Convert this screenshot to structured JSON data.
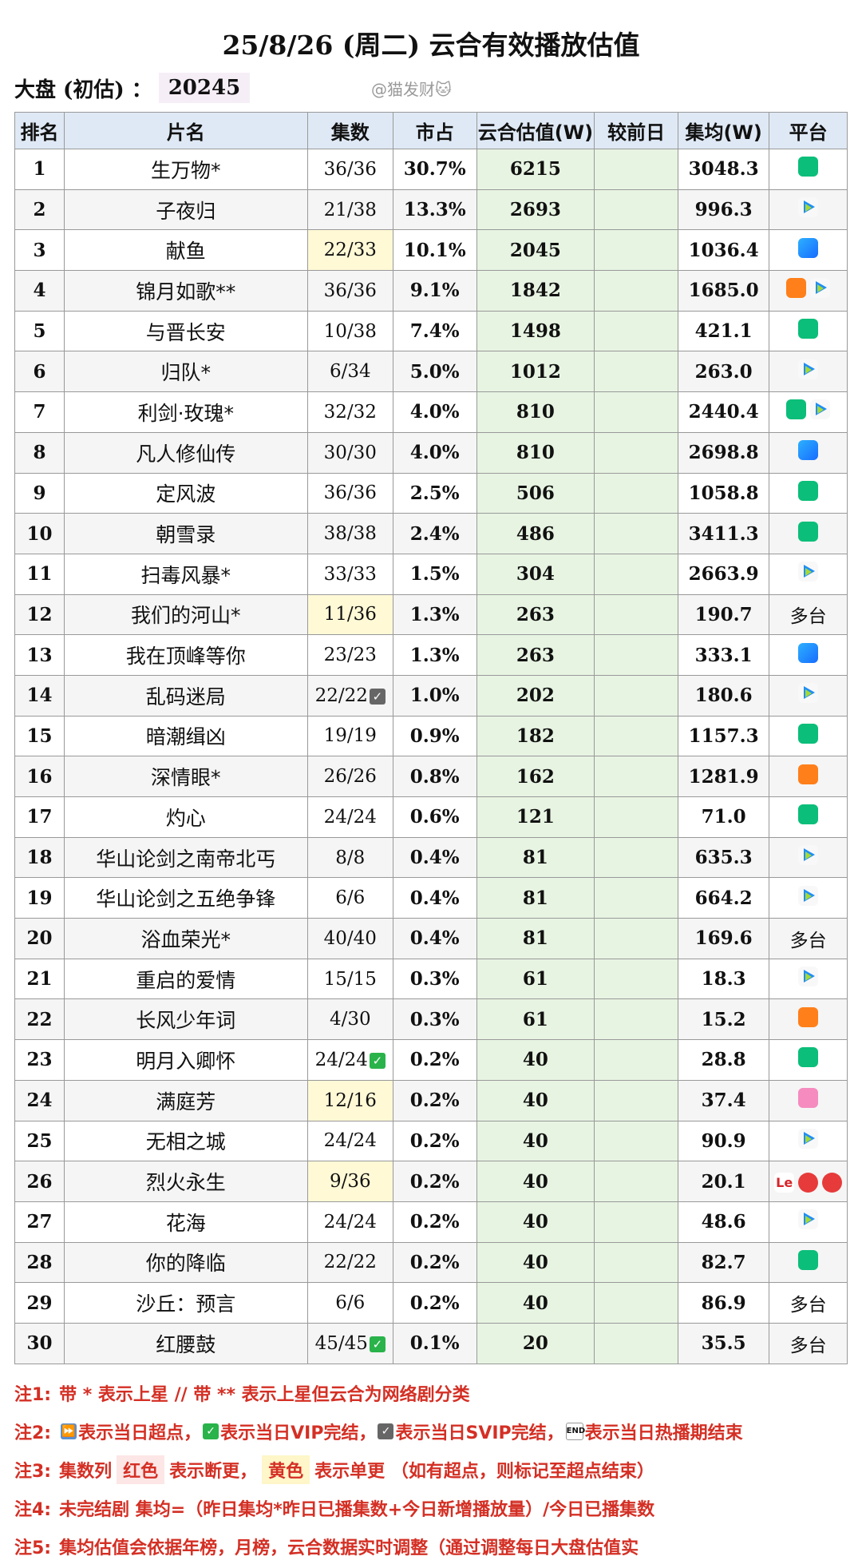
{
  "title": "25/8/26 (周二) 云合有效播放估值",
  "summary": {
    "label": "大盘 (初估) ：",
    "value": "20245"
  },
  "watermark": "@猫发财🐱",
  "headers": [
    "排名",
    "片名",
    "集数",
    "市占",
    "云合估值(W)",
    "较前日",
    "集均(W)",
    "平台"
  ],
  "rows": [
    {
      "rank": "1",
      "name": "生万物*",
      "episodes": "36/36",
      "share": "30.7%",
      "value": "6215",
      "change": "",
      "avg": "3048.3",
      "platform": [
        "iqiyi"
      ]
    },
    {
      "rank": "2",
      "name": "子夜归",
      "episodes": "21/38",
      "share": "13.3%",
      "value": "2693",
      "change": "",
      "avg": "996.3",
      "platform": [
        "tencent"
      ]
    },
    {
      "rank": "3",
      "name": "献鱼",
      "episodes": "22/33",
      "share": "10.1%",
      "value": "2045",
      "change": "",
      "avg": "1036.4",
      "platform": [
        "youku"
      ],
      "highlight": "yellow"
    },
    {
      "rank": "4",
      "name": "锦月如歌**",
      "episodes": "36/36",
      "share": "9.1%",
      "value": "1842",
      "change": "",
      "avg": "1685.0",
      "platform": [
        "mango",
        "tencent"
      ]
    },
    {
      "rank": "5",
      "name": "与晋长安",
      "episodes": "10/38",
      "share": "7.4%",
      "value": "1498",
      "change": "",
      "avg": "421.1",
      "platform": [
        "iqiyi"
      ]
    },
    {
      "rank": "6",
      "name": "归队*",
      "episodes": "6/34",
      "share": "5.0%",
      "value": "1012",
      "change": "",
      "avg": "263.0",
      "platform": [
        "tencent"
      ]
    },
    {
      "rank": "7",
      "name": "利剑·玫瑰*",
      "episodes": "32/32",
      "share": "4.0%",
      "value": "810",
      "change": "",
      "avg": "2440.4",
      "platform": [
        "iqiyi",
        "tencent"
      ]
    },
    {
      "rank": "8",
      "name": "凡人修仙传",
      "episodes": "30/30",
      "share": "4.0%",
      "value": "810",
      "change": "",
      "avg": "2698.8",
      "platform": [
        "youku"
      ]
    },
    {
      "rank": "9",
      "name": "定风波",
      "episodes": "36/36",
      "share": "2.5%",
      "value": "506",
      "change": "",
      "avg": "1058.8",
      "platform": [
        "iqiyi"
      ]
    },
    {
      "rank": "10",
      "name": "朝雪录",
      "episodes": "38/38",
      "share": "2.4%",
      "value": "486",
      "change": "",
      "avg": "3411.3",
      "platform": [
        "iqiyi"
      ]
    },
    {
      "rank": "11",
      "name": "扫毒风暴*",
      "episodes": "33/33",
      "share": "1.5%",
      "value": "304",
      "change": "",
      "avg": "2663.9",
      "platform": [
        "tencent"
      ]
    },
    {
      "rank": "12",
      "name": "我们的河山*",
      "episodes": "11/36",
      "share": "1.3%",
      "value": "263",
      "change": "",
      "avg": "190.7",
      "platform_text": "多台",
      "highlight": "yellow"
    },
    {
      "rank": "13",
      "name": "我在顶峰等你",
      "episodes": "23/23",
      "share": "1.3%",
      "value": "263",
      "change": "",
      "avg": "333.1",
      "platform": [
        "youku"
      ]
    },
    {
      "rank": "14",
      "name": "乱码迷局",
      "episodes": "22/22",
      "share": "1.0%",
      "value": "202",
      "change": "",
      "avg": "180.6",
      "platform": [
        "tencent"
      ],
      "mark": "svip"
    },
    {
      "rank": "15",
      "name": "暗潮缉凶",
      "episodes": "19/19",
      "share": "0.9%",
      "value": "182",
      "change": "",
      "avg": "1157.3",
      "platform": [
        "iqiyi"
      ]
    },
    {
      "rank": "16",
      "name": "深情眼*",
      "episodes": "26/26",
      "share": "0.8%",
      "value": "162",
      "change": "",
      "avg": "1281.9",
      "platform": [
        "mango"
      ]
    },
    {
      "rank": "17",
      "name": "灼心",
      "episodes": "24/24",
      "share": "0.6%",
      "value": "121",
      "change": "",
      "avg": "71.0",
      "platform": [
        "iqiyi"
      ]
    },
    {
      "rank": "18",
      "name": "华山论剑之南帝北丐",
      "episodes": "8/8",
      "share": "0.4%",
      "value": "81",
      "change": "",
      "avg": "635.3",
      "platform": [
        "tencent"
      ]
    },
    {
      "rank": "19",
      "name": "华山论剑之五绝争锋",
      "episodes": "6/6",
      "share": "0.4%",
      "value": "81",
      "change": "",
      "avg": "664.2",
      "platform": [
        "tencent"
      ]
    },
    {
      "rank": "20",
      "name": "浴血荣光*",
      "episodes": "40/40",
      "share": "0.4%",
      "value": "81",
      "change": "",
      "avg": "169.6",
      "platform_text": "多台"
    },
    {
      "rank": "21",
      "name": "重启的爱情",
      "episodes": "15/15",
      "share": "0.3%",
      "value": "61",
      "change": "",
      "avg": "18.3",
      "platform": [
        "tencent"
      ]
    },
    {
      "rank": "22",
      "name": "长风少年词",
      "episodes": "4/30",
      "share": "0.3%",
      "value": "61",
      "change": "",
      "avg": "15.2",
      "platform": [
        "mango"
      ]
    },
    {
      "rank": "23",
      "name": "明月入卿怀",
      "episodes": "24/24",
      "share": "0.2%",
      "value": "40",
      "change": "",
      "avg": "28.8",
      "platform": [
        "iqiyi"
      ],
      "mark": "vip"
    },
    {
      "rank": "24",
      "name": "满庭芳",
      "episodes": "12/16",
      "share": "0.2%",
      "value": "40",
      "change": "",
      "avg": "37.4",
      "platform": [
        "bilibili"
      ],
      "highlight": "yellow"
    },
    {
      "rank": "25",
      "name": "无相之城",
      "episodes": "24/24",
      "share": "0.2%",
      "value": "40",
      "change": "",
      "avg": "90.9",
      "platform": [
        "tencent"
      ]
    },
    {
      "rank": "26",
      "name": "烈火永生",
      "episodes": "9/36",
      "share": "0.2%",
      "value": "40",
      "change": "",
      "avg": "20.1",
      "platform": [
        "le",
        "red",
        "red"
      ],
      "highlight": "yellow"
    },
    {
      "rank": "27",
      "name": "花海",
      "episodes": "24/24",
      "share": "0.2%",
      "value": "40",
      "change": "",
      "avg": "48.6",
      "platform": [
        "tencent"
      ]
    },
    {
      "rank": "28",
      "name": "你的降临",
      "episodes": "22/22",
      "share": "0.2%",
      "value": "40",
      "change": "",
      "avg": "82.7",
      "platform": [
        "iqiyi"
      ]
    },
    {
      "rank": "29",
      "name": "沙丘：预言",
      "episodes": "6/6",
      "share": "0.2%",
      "value": "40",
      "change": "",
      "avg": "86.9",
      "platform_text": "多台"
    },
    {
      "rank": "30",
      "name": "红腰鼓",
      "episodes": "45/45",
      "share": "0.1%",
      "value": "20",
      "change": "",
      "avg": "35.5",
      "platform_text": "多台",
      "mark": "vip"
    }
  ],
  "platform_icon_names": {
    "iqiyi": "iqiyi-icon",
    "tencent": "tencent-video-icon",
    "youku": "youku-icon",
    "mango": "mango-tv-icon",
    "bilibili": "bilibili-icon",
    "le": "le-icon",
    "red": "red-play-icon"
  },
  "notes": {
    "n1": {
      "label": "注1:",
      "text": "带 * 表示上星 // 带 ** 表示上星但云合为网络剧分类"
    },
    "n2": {
      "label": "注2:",
      "t1": "表示当日超点，",
      "t2": "表示当日VIP完结，",
      "t3": "表示当日SVIP完结，",
      "t4": "表示当日热播期结束"
    },
    "n3": {
      "label": "注3:",
      "t1": "集数列",
      "red": "红色",
      "t2": "表示断更，",
      "yellow": "黄色",
      "t3": "表示单更 （如有超点，则标记至超点结束）"
    },
    "n4": {
      "label": "注4:",
      "text": "未完结剧 集均=（昨日集均*昨日已播集数+今日新增播放量）/今日已播集数"
    },
    "n5": {
      "label": "注5:",
      "text": "集均估值会依据年榜，月榜，云合数据实时调整（通过调整每日大盘估值实"
    }
  },
  "colors": {
    "header_bg": "#dfe9f5",
    "value_bg": "#e7f4e2",
    "note_red": "#d42f24",
    "yellow_highlight": "#fff9d6"
  }
}
